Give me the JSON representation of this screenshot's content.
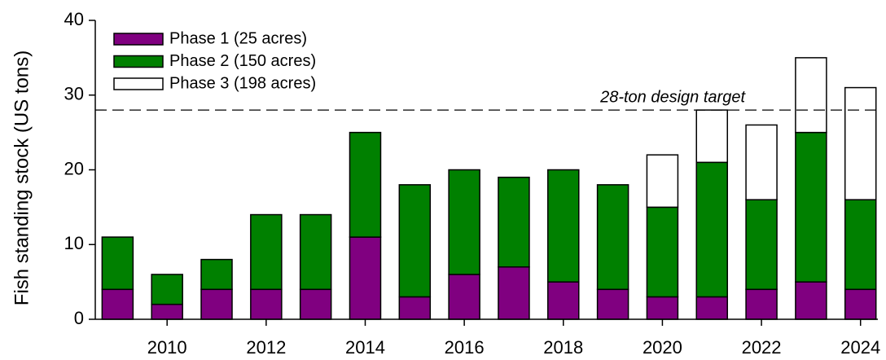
{
  "chart_data": {
    "type": "stacked_bar",
    "y_label": "Fish standing stock (US tons)",
    "x": [
      2009,
      2010,
      2011,
      2012,
      2013,
      2014,
      2015,
      2016,
      2017,
      2018,
      2019,
      2020,
      2021,
      2022,
      2023,
      2024
    ],
    "series": [
      {
        "name": "Phase 1 (25 acres)",
        "color": "#800080",
        "values": [
          4,
          2,
          4,
          4,
          4,
          11,
          3,
          6,
          7,
          5,
          4,
          3,
          3,
          4,
          5,
          4
        ]
      },
      {
        "name": "Phase 2 (150 acres)",
        "color": "#008000",
        "values": [
          7,
          4,
          4,
          10,
          10,
          14,
          15,
          14,
          12,
          15,
          14,
          12,
          18,
          12,
          20,
          12
        ]
      },
      {
        "name": "Phase 3 (198 acres)",
        "color": "#ffffff",
        "values": [
          0,
          0,
          0,
          0,
          0,
          0,
          0,
          0,
          0,
          0,
          0,
          7,
          7,
          10,
          10,
          15
        ]
      }
    ],
    "xlim": [
      2008.55,
      2024.35
    ],
    "xticks": [
      2010,
      2012,
      2014,
      2016,
      2018,
      2020,
      2022,
      2024
    ],
    "ylim": [
      0,
      40
    ],
    "yticks": [
      0,
      10,
      20,
      30,
      40
    ],
    "reference_line": {
      "value": 28,
      "label": "28-ton design target"
    },
    "legend": "upper left"
  }
}
